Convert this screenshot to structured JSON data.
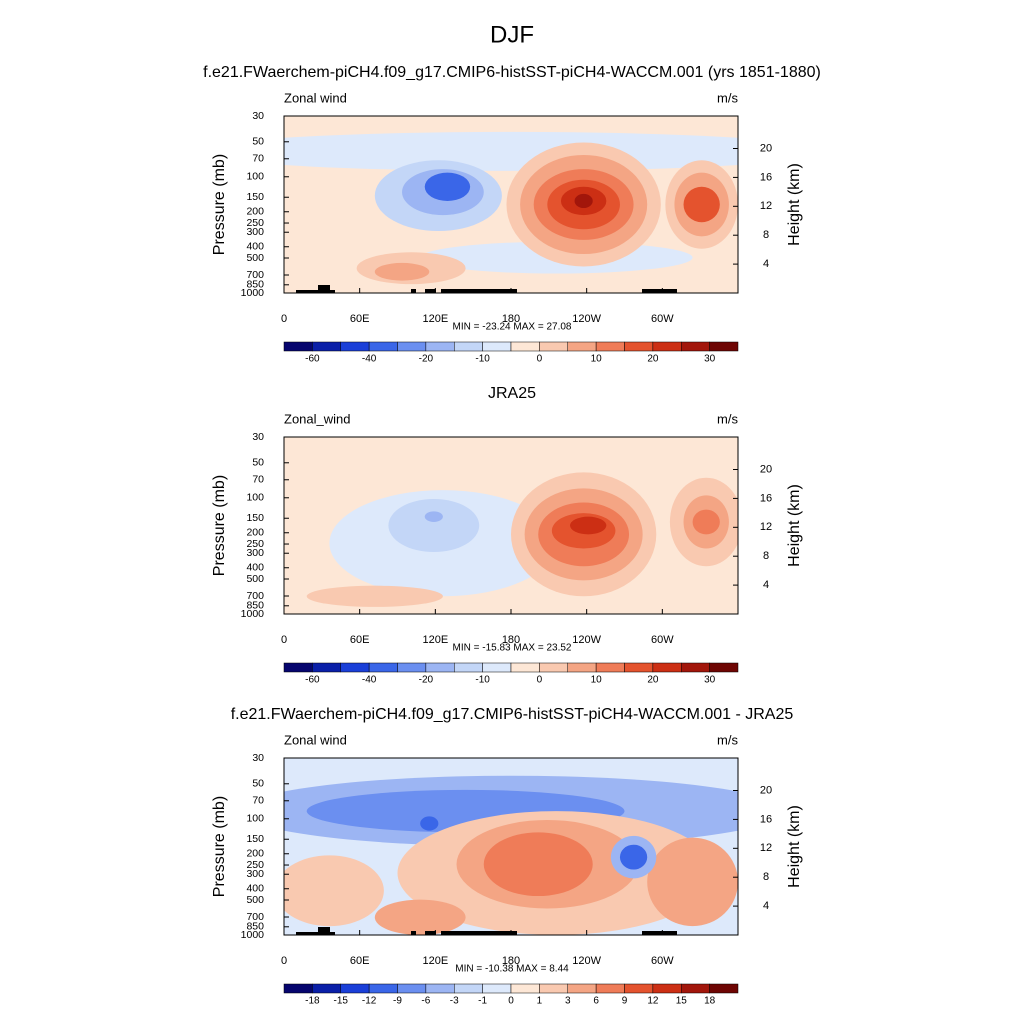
{
  "figure_title": "DJF",
  "chart_data": [
    {
      "type": "contour",
      "title": "f.e21.FWaerchem-piCH4.f09_g17.CMIP6-histSST-piCH4-WACCM.001 (yrs 1851-1880)",
      "left_label": "Zonal wind",
      "right_label": "m/s",
      "ylabel": "Pressure (mb)",
      "y2label": "Height (km)",
      "stats": "MIN = -23.24  MAX =  27.08",
      "xlim": [
        0,
        360
      ],
      "xticks": [
        0,
        {
          "value": 60,
          "label": "60E"
        },
        {
          "value": 120,
          "label": "120E"
        },
        180,
        {
          "value": 240,
          "label": "120W"
        },
        {
          "value": 300,
          "label": "60W"
        }
      ],
      "ylim": [
        1000,
        30
      ],
      "yscale": "log",
      "yticks": [
        30,
        50,
        70,
        100,
        150,
        200,
        250,
        300,
        400,
        500,
        700,
        850,
        1000
      ],
      "y2lim": [
        0,
        24.5
      ],
      "y2ticks": [
        4,
        8,
        12,
        16,
        20
      ],
      "terrain": true,
      "colorbar": {
        "colors": [
          "#06056e",
          "#0a1fa8",
          "#1a3fd8",
          "#3a66e8",
          "#6b8ff0",
          "#9cb5f3",
          "#c3d6f7",
          "#dde9fb",
          "#fde7d6",
          "#f9c9b0",
          "#f4a584",
          "#ef7c58",
          "#e4532e",
          "#cc2f14",
          "#a2160b",
          "#6e0503"
        ],
        "ticks": [
          -60,
          -40,
          -20,
          -10,
          0,
          10,
          20,
          30
        ]
      }
    },
    {
      "type": "contour",
      "title": "JRA25",
      "left_label": "Zonal_wind",
      "right_label": "m/s",
      "ylabel": "Pressure (mb)",
      "y2label": "Height (km)",
      "stats": "MIN = -15.83  MAX =  23.52",
      "xlim": [
        0,
        360
      ],
      "xticks": [
        0,
        {
          "value": 60,
          "label": "60E"
        },
        {
          "value": 120,
          "label": "120E"
        },
        180,
        {
          "value": 240,
          "label": "120W"
        },
        {
          "value": 300,
          "label": "60W"
        }
      ],
      "ylim": [
        1000,
        30
      ],
      "yscale": "log",
      "yticks": [
        30,
        50,
        70,
        100,
        150,
        200,
        250,
        300,
        400,
        500,
        700,
        850,
        1000
      ],
      "y2lim": [
        0,
        24.5
      ],
      "y2ticks": [
        4,
        8,
        12,
        16,
        20
      ],
      "terrain": false,
      "colorbar": {
        "colors": [
          "#06056e",
          "#0a1fa8",
          "#1a3fd8",
          "#3a66e8",
          "#6b8ff0",
          "#9cb5f3",
          "#c3d6f7",
          "#dde9fb",
          "#fde7d6",
          "#f9c9b0",
          "#f4a584",
          "#ef7c58",
          "#e4532e",
          "#cc2f14",
          "#a2160b",
          "#6e0503"
        ],
        "ticks": [
          -60,
          -40,
          -20,
          -10,
          0,
          10,
          20,
          30
        ]
      }
    },
    {
      "type": "contour",
      "title": "f.e21.FWaerchem-piCH4.f09_g17.CMIP6-histSST-piCH4-WACCM.001 - JRA25",
      "left_label": "Zonal wind",
      "right_label": "m/s",
      "ylabel": "Pressure (mb)",
      "y2label": "Height (km)",
      "stats": "MIN = -10.38  MAX =  8.44",
      "xlim": [
        0,
        360
      ],
      "xticks": [
        0,
        {
          "value": 60,
          "label": "60E"
        },
        {
          "value": 120,
          "label": "120E"
        },
        180,
        {
          "value": 240,
          "label": "120W"
        },
        {
          "value": 300,
          "label": "60W"
        }
      ],
      "ylim": [
        1000,
        30
      ],
      "yscale": "log",
      "yticks": [
        30,
        50,
        70,
        100,
        150,
        200,
        250,
        300,
        400,
        500,
        700,
        850,
        1000
      ],
      "y2lim": [
        0,
        24.5
      ],
      "y2ticks": [
        4,
        8,
        12,
        16,
        20
      ],
      "terrain": true,
      "colorbar": {
        "colors": [
          "#06056e",
          "#0a1fa8",
          "#1a3fd8",
          "#3a66e8",
          "#6b8ff0",
          "#9cb5f3",
          "#c3d6f7",
          "#dde9fb",
          "#fde7d6",
          "#f9c9b0",
          "#f4a584",
          "#ef7c58",
          "#e4532e",
          "#cc2f14",
          "#a2160b",
          "#6e0503"
        ],
        "ticks": [
          -18,
          -15,
          -12,
          -9,
          -6,
          -3,
          -1,
          0,
          1,
          3,
          6,
          9,
          12,
          15,
          18
        ]
      }
    }
  ]
}
